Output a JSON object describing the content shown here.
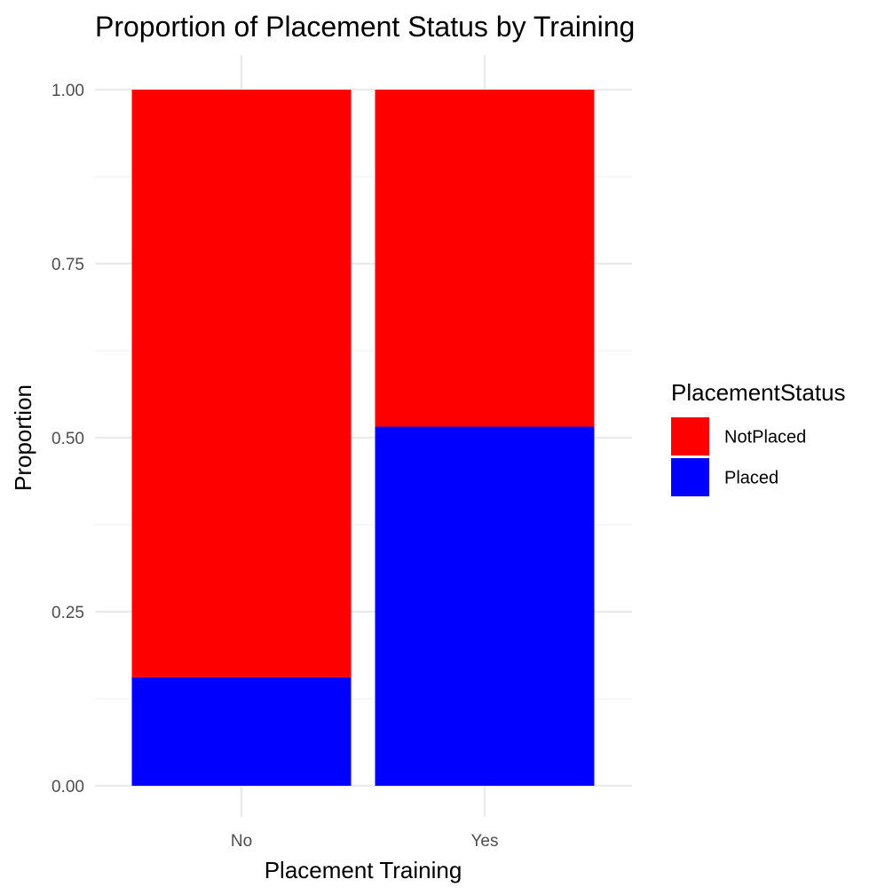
{
  "chart_data": {
    "type": "bar",
    "stacked": true,
    "title": "Proportion of Placement Status by Training",
    "xlabel": "Placement Training",
    "ylabel": "Proportion",
    "categories": [
      "No",
      "Yes"
    ],
    "series": [
      {
        "name": "NotPlaced",
        "color": "#ff0000",
        "values": [
          0.844,
          0.484
        ]
      },
      {
        "name": "Placed",
        "color": "#0000ff",
        "values": [
          0.156,
          0.516
        ]
      }
    ],
    "ylim": [
      0,
      1
    ],
    "yticks": [
      "0.00",
      "0.25",
      "0.50",
      "0.75",
      "1.00"
    ],
    "grid": true,
    "legend": {
      "title": "PlacementStatus",
      "position": "right"
    }
  }
}
